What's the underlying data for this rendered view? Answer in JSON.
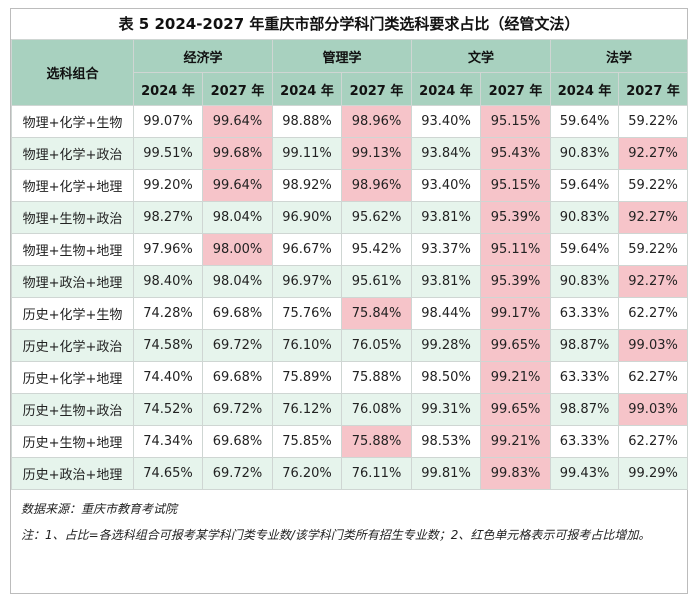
{
  "title": "表 5  2024-2027 年重庆市部分学科门类选科要求占比（经管文法）",
  "header": {
    "combo_label": "选科组合",
    "groups": [
      "经济学",
      "管理学",
      "文学",
      "法学"
    ],
    "years": [
      "2024 年",
      "2027 年"
    ]
  },
  "rows": [
    {
      "combo": "物理+化学+生物",
      "values": [
        "99.07%",
        "99.64%",
        "98.88%",
        "98.96%",
        "93.40%",
        "95.15%",
        "59.64%",
        "59.22%"
      ],
      "highlight": [
        false,
        true,
        false,
        true,
        false,
        true,
        false,
        false
      ]
    },
    {
      "combo": "物理+化学+政治",
      "values": [
        "99.51%",
        "99.68%",
        "99.11%",
        "99.13%",
        "93.84%",
        "95.43%",
        "90.83%",
        "92.27%"
      ],
      "highlight": [
        false,
        true,
        false,
        true,
        false,
        true,
        false,
        true
      ]
    },
    {
      "combo": "物理+化学+地理",
      "values": [
        "99.20%",
        "99.64%",
        "98.92%",
        "98.96%",
        "93.40%",
        "95.15%",
        "59.64%",
        "59.22%"
      ],
      "highlight": [
        false,
        true,
        false,
        true,
        false,
        true,
        false,
        false
      ]
    },
    {
      "combo": "物理+生物+政治",
      "values": [
        "98.27%",
        "98.04%",
        "96.90%",
        "95.62%",
        "93.81%",
        "95.39%",
        "90.83%",
        "92.27%"
      ],
      "highlight": [
        false,
        false,
        false,
        false,
        false,
        true,
        false,
        true
      ]
    },
    {
      "combo": "物理+生物+地理",
      "values": [
        "97.96%",
        "98.00%",
        "96.67%",
        "95.42%",
        "93.37%",
        "95.11%",
        "59.64%",
        "59.22%"
      ],
      "highlight": [
        false,
        true,
        false,
        false,
        false,
        true,
        false,
        false
      ]
    },
    {
      "combo": "物理+政治+地理",
      "values": [
        "98.40%",
        "98.04%",
        "96.97%",
        "95.61%",
        "93.81%",
        "95.39%",
        "90.83%",
        "92.27%"
      ],
      "highlight": [
        false,
        false,
        false,
        false,
        false,
        true,
        false,
        true
      ]
    },
    {
      "combo": "历史+化学+生物",
      "values": [
        "74.28%",
        "69.68%",
        "75.76%",
        "75.84%",
        "98.44%",
        "99.17%",
        "63.33%",
        "62.27%"
      ],
      "highlight": [
        false,
        false,
        false,
        true,
        false,
        true,
        false,
        false
      ]
    },
    {
      "combo": "历史+化学+政治",
      "values": [
        "74.58%",
        "69.72%",
        "76.10%",
        "76.05%",
        "99.28%",
        "99.65%",
        "98.87%",
        "99.03%"
      ],
      "highlight": [
        false,
        false,
        false,
        false,
        false,
        true,
        false,
        true
      ]
    },
    {
      "combo": "历史+化学+地理",
      "values": [
        "74.40%",
        "69.68%",
        "75.89%",
        "75.88%",
        "98.50%",
        "99.21%",
        "63.33%",
        "62.27%"
      ],
      "highlight": [
        false,
        false,
        false,
        false,
        false,
        true,
        false,
        false
      ]
    },
    {
      "combo": "历史+生物+政治",
      "values": [
        "74.52%",
        "69.72%",
        "76.12%",
        "76.08%",
        "99.31%",
        "99.65%",
        "98.87%",
        "99.03%"
      ],
      "highlight": [
        false,
        false,
        false,
        false,
        false,
        true,
        false,
        true
      ]
    },
    {
      "combo": "历史+生物+地理",
      "values": [
        "74.34%",
        "69.68%",
        "75.85%",
        "75.88%",
        "98.53%",
        "99.21%",
        "63.33%",
        "62.27%"
      ],
      "highlight": [
        false,
        false,
        false,
        true,
        false,
        true,
        false,
        false
      ]
    },
    {
      "combo": "历史+政治+地理",
      "values": [
        "74.65%",
        "69.72%",
        "76.20%",
        "76.11%",
        "99.81%",
        "99.83%",
        "99.43%",
        "99.29%"
      ],
      "highlight": [
        false,
        false,
        false,
        false,
        false,
        true,
        false,
        false
      ]
    }
  ],
  "notes": {
    "source": "数据来源：重庆市教育考试院",
    "note": "注：1、占比=各选科组合可报考某学科门类专业数/该学科门类所有招生专业数；2、红色单元格表示可报考占比增加。"
  },
  "colors": {
    "header_bg": "#a8d1bf",
    "stripe_bg": "#e6f4ec",
    "highlight_bg": "#f6c4c9"
  }
}
